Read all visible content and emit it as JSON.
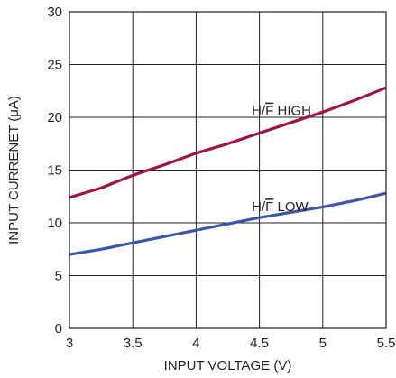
{
  "chart_data": {
    "type": "line",
    "xlabel": "INPUT VOLTAGE (V)",
    "ylabel": "INPUT CURRENET (μA)",
    "xlim": [
      3,
      5.5
    ],
    "ylim": [
      0,
      30
    ],
    "xticks": [
      3,
      3.5,
      4,
      4.5,
      5,
      5.5
    ],
    "xtick_labels": [
      "3",
      "3.5",
      "4",
      "4.5",
      "5",
      "5.5"
    ],
    "yticks": [
      0,
      5,
      10,
      15,
      20,
      25,
      30
    ],
    "ytick_labels": [
      "0",
      "5",
      "10",
      "15",
      "20",
      "25",
      "30"
    ],
    "grid": true,
    "series": [
      {
        "name": "H/F HIGH",
        "label_parts": [
          "H/",
          "F",
          " HIGH"
        ],
        "color": "#a0153e",
        "x": [
          3.0,
          3.25,
          3.5,
          3.75,
          4.0,
          4.25,
          4.5,
          4.75,
          5.0,
          5.25,
          5.5
        ],
        "y": [
          12.4,
          13.3,
          14.5,
          15.5,
          16.6,
          17.5,
          18.5,
          19.5,
          20.5,
          21.6,
          22.8
        ]
      },
      {
        "name": "H/F LOW",
        "label_parts": [
          "H/",
          "F",
          " LOW"
        ],
        "color": "#3a56a8",
        "x": [
          3.0,
          3.25,
          3.5,
          3.75,
          4.0,
          4.25,
          4.5,
          4.75,
          5.0,
          5.25,
          5.5
        ],
        "y": [
          7.0,
          7.5,
          8.1,
          8.7,
          9.3,
          9.9,
          10.5,
          11.0,
          11.5,
          12.1,
          12.8
        ]
      }
    ]
  }
}
